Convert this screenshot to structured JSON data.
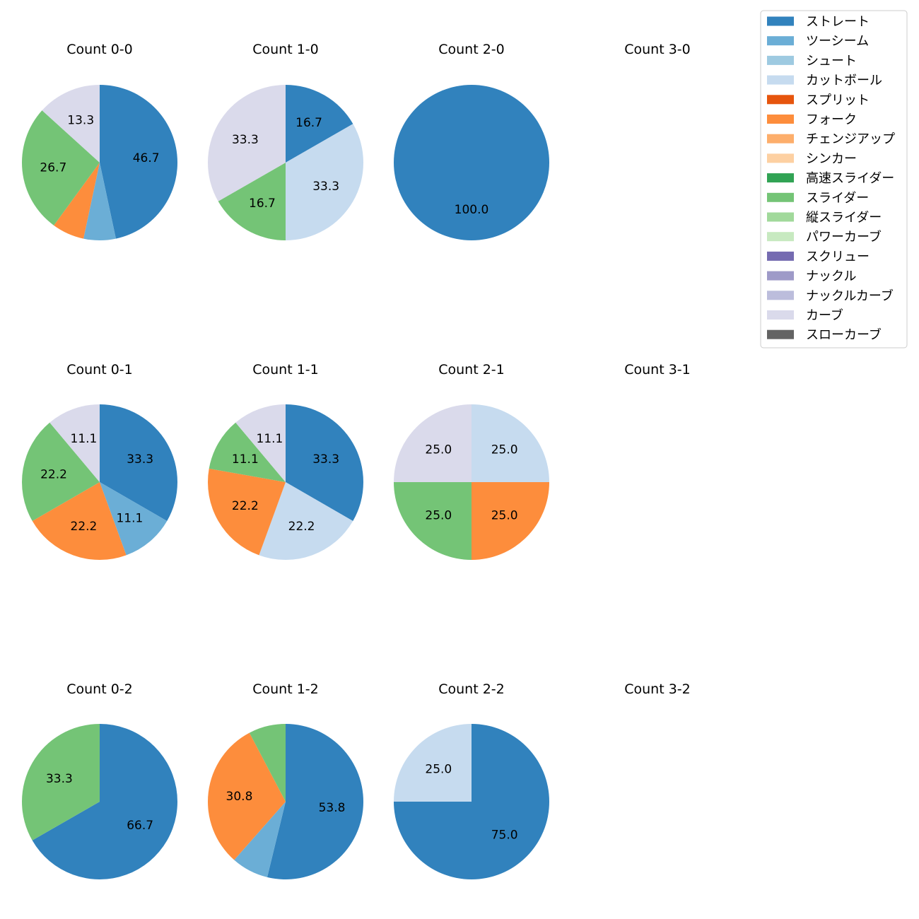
{
  "categories": [
    "ストレート",
    "ツーシーム",
    "シュート",
    "カットボール",
    "スプリット",
    "フォーク",
    "チェンジアップ",
    "シンカー",
    "高速スライダー",
    "スライダー",
    "縦スライダー",
    "パワーカーブ",
    "スクリュー",
    "ナックル",
    "ナックルカーブ",
    "カーブ",
    "スローカーブ"
  ],
  "colors": [
    "#3182bd",
    "#6baed6",
    "#9ecae1",
    "#c6dbef",
    "#e6550d",
    "#fd8d3c",
    "#fdae6b",
    "#fdd0a2",
    "#31a354",
    "#74c476",
    "#a1d99b",
    "#c7e9c0",
    "#756bb1",
    "#9e9ac8",
    "#bcbddc",
    "#dadaeb",
    "#636363"
  ],
  "chart_data": [
    {
      "type": "pie",
      "title": "Count 0-0",
      "slices": [
        {
          "category": "ストレート",
          "value": 46.7,
          "label": "46.7"
        },
        {
          "category": "ツーシーム",
          "value": 6.7,
          "label": ""
        },
        {
          "category": "フォーク",
          "value": 6.7,
          "label": ""
        },
        {
          "category": "スライダー",
          "value": 26.7,
          "label": "26.7"
        },
        {
          "category": "カーブ",
          "value": 13.3,
          "label": "13.3"
        }
      ]
    },
    {
      "type": "pie",
      "title": "Count 1-0",
      "slices": [
        {
          "category": "ストレート",
          "value": 16.7,
          "label": "16.7"
        },
        {
          "category": "カットボール",
          "value": 33.3,
          "label": "33.3"
        },
        {
          "category": "スライダー",
          "value": 16.7,
          "label": "16.7"
        },
        {
          "category": "カーブ",
          "value": 33.3,
          "label": "33.3"
        }
      ]
    },
    {
      "type": "pie",
      "title": "Count 2-0",
      "slices": [
        {
          "category": "ストレート",
          "value": 100.0,
          "label": "100.0"
        }
      ]
    },
    {
      "type": "pie",
      "title": "Count 3-0",
      "slices": []
    },
    {
      "type": "pie",
      "title": "Count 0-1",
      "slices": [
        {
          "category": "ストレート",
          "value": 33.3,
          "label": "33.3"
        },
        {
          "category": "ツーシーム",
          "value": 11.1,
          "label": "11.1"
        },
        {
          "category": "フォーク",
          "value": 22.2,
          "label": "22.2"
        },
        {
          "category": "スライダー",
          "value": 22.2,
          "label": "22.2"
        },
        {
          "category": "カーブ",
          "value": 11.1,
          "label": "11.1"
        }
      ]
    },
    {
      "type": "pie",
      "title": "Count 1-1",
      "slices": [
        {
          "category": "ストレート",
          "value": 33.3,
          "label": "33.3"
        },
        {
          "category": "カットボール",
          "value": 22.2,
          "label": "22.2"
        },
        {
          "category": "フォーク",
          "value": 22.2,
          "label": "22.2"
        },
        {
          "category": "スライダー",
          "value": 11.1,
          "label": "11.1"
        },
        {
          "category": "カーブ",
          "value": 11.1,
          "label": "11.1"
        }
      ]
    },
    {
      "type": "pie",
      "title": "Count 2-1",
      "slices": [
        {
          "category": "カットボール",
          "value": 25.0,
          "label": "25.0"
        },
        {
          "category": "フォーク",
          "value": 25.0,
          "label": "25.0"
        },
        {
          "category": "スライダー",
          "value": 25.0,
          "label": "25.0"
        },
        {
          "category": "カーブ",
          "value": 25.0,
          "label": "25.0"
        }
      ]
    },
    {
      "type": "pie",
      "title": "Count 3-1",
      "slices": []
    },
    {
      "type": "pie",
      "title": "Count 0-2",
      "slices": [
        {
          "category": "ストレート",
          "value": 66.7,
          "label": "66.7"
        },
        {
          "category": "スライダー",
          "value": 33.3,
          "label": "33.3"
        }
      ]
    },
    {
      "type": "pie",
      "title": "Count 1-2",
      "slices": [
        {
          "category": "ストレート",
          "value": 53.8,
          "label": "53.8"
        },
        {
          "category": "ツーシーム",
          "value": 7.7,
          "label": ""
        },
        {
          "category": "フォーク",
          "value": 30.8,
          "label": "30.8"
        },
        {
          "category": "スライダー",
          "value": 7.7,
          "label": ""
        }
      ]
    },
    {
      "type": "pie",
      "title": "Count 2-2",
      "slices": [
        {
          "category": "ストレート",
          "value": 75.0,
          "label": "75.0"
        },
        {
          "category": "カットボール",
          "value": 25.0,
          "label": "25.0"
        }
      ]
    },
    {
      "type": "pie",
      "title": "Count 3-2",
      "slices": []
    }
  ]
}
